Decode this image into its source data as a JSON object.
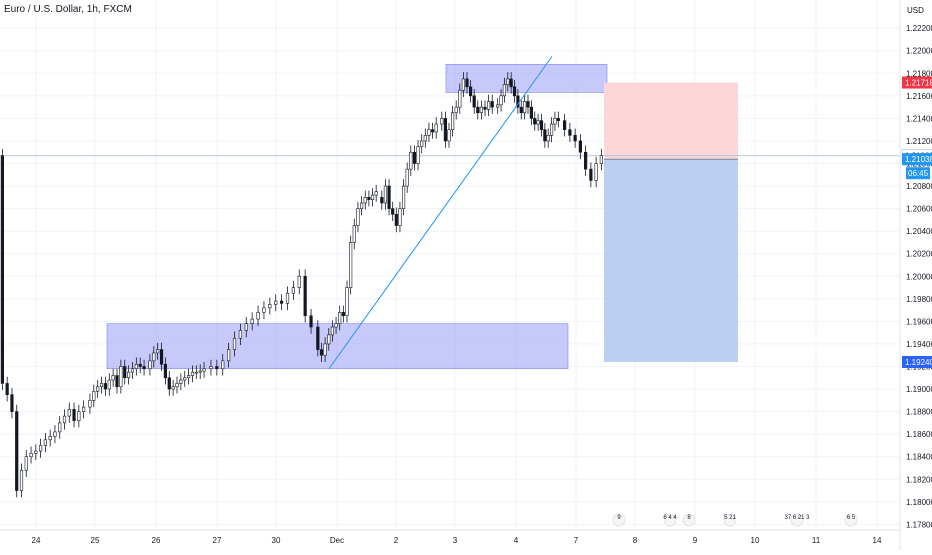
{
  "header": {
    "symbol_title": "Euro / U.S. Dollar, 1h, FXCM",
    "currency": "USD"
  },
  "chart_data": {
    "type": "candlestick",
    "title": "Euro / U.S. Dollar, 1h, FXCM",
    "ylim": [
      1.1775,
      1.2245
    ],
    "y_ticks": [
      "1.17800",
      "1.18000",
      "1.18200",
      "1.18400",
      "1.18600",
      "1.18800",
      "1.19000",
      "1.19200",
      "1.19400",
      "1.19600",
      "1.19800",
      "1.20000",
      "1.20200",
      "1.20400",
      "1.20600",
      "1.20800",
      "1.21000",
      "1.21200",
      "1.21400",
      "1.21600",
      "1.21800",
      "1.22000",
      "1.22200"
    ],
    "x_ticks": [
      "24",
      "25",
      "26",
      "27",
      "30",
      "Dec",
      "2",
      "3",
      "4",
      "7",
      "8",
      "9",
      "10",
      "11",
      "14"
    ],
    "price_series": [
      [
        "24",
        1.1905
      ],
      [
        "24",
        1.1895
      ],
      [
        "24",
        1.188
      ],
      [
        "24",
        1.181
      ],
      [
        "24",
        1.1828
      ],
      [
        "24",
        1.184
      ],
      [
        "24",
        1.1843
      ],
      [
        "24",
        1.1845
      ],
      [
        "24",
        1.185
      ],
      [
        "24",
        1.1855
      ],
      [
        "24",
        1.1858
      ],
      [
        "24",
        1.1862
      ],
      [
        "24",
        1.187
      ],
      [
        "24",
        1.1876
      ],
      [
        "24",
        1.1882
      ],
      [
        "24",
        1.1872
      ],
      [
        "24",
        1.188
      ],
      [
        "24",
        1.1884
      ],
      [
        "25",
        1.189
      ],
      [
        "25",
        1.1898
      ],
      [
        "25",
        1.1902
      ],
      [
        "25",
        1.1905
      ],
      [
        "25",
        1.19
      ],
      [
        "25",
        1.1908
      ],
      [
        "25",
        1.1912
      ],
      [
        "25",
        1.1902
      ],
      [
        "25",
        1.192
      ],
      [
        "25",
        1.191
      ],
      [
        "25",
        1.1915
      ],
      [
        "25",
        1.1918
      ],
      [
        "25",
        1.1922
      ],
      [
        "25",
        1.192
      ],
      [
        "25",
        1.1918
      ],
      [
        "26",
        1.1925
      ],
      [
        "26",
        1.1932
      ],
      [
        "26",
        1.1935
      ],
      [
        "26",
        1.1922
      ],
      [
        "26",
        1.191
      ],
      [
        "26",
        1.19
      ],
      [
        "26",
        1.1902
      ],
      [
        "26",
        1.1905
      ],
      [
        "26",
        1.1908
      ],
      [
        "26",
        1.191
      ],
      [
        "26",
        1.1912
      ],
      [
        "26",
        1.1915
      ],
      [
        "26",
        1.1915
      ],
      [
        "26",
        1.1916
      ],
      [
        "26",
        1.1918
      ],
      [
        "27",
        1.192
      ],
      [
        "27",
        1.1918
      ],
      [
        "27",
        1.1925
      ],
      [
        "27",
        1.1935
      ],
      [
        "27",
        1.1945
      ],
      [
        "27",
        1.1952
      ],
      [
        "27",
        1.1958
      ],
      [
        "27",
        1.1962
      ],
      [
        "27",
        1.1968
      ],
      [
        "27",
        1.1972
      ],
      [
        "27",
        1.1975
      ],
      [
        "27",
        1.1978
      ],
      [
        "27",
        1.1976
      ],
      [
        "27",
        1.1985
      ],
      [
        "27",
        1.199
      ],
      [
        "27",
        1.2
      ],
      [
        "27",
        1.1965
      ],
      [
        "27",
        1.1955
      ],
      [
        "Dec",
        1.1935
      ],
      [
        "Dec",
        1.193
      ],
      [
        "Dec",
        1.194
      ],
      [
        "Dec",
        1.1948
      ],
      [
        "Dec",
        1.1955
      ],
      [
        "Dec",
        1.1958
      ],
      [
        "Dec",
        1.1968
      ],
      [
        "Dec",
        1.1965
      ],
      [
        "Dec",
        1.199
      ],
      [
        "Dec",
        1.203
      ],
      [
        "Dec",
        1.2045
      ],
      [
        "Dec",
        1.206
      ],
      [
        "Dec",
        1.2065
      ],
      [
        "Dec",
        1.207
      ],
      [
        "Dec",
        1.2068
      ],
      [
        "Dec",
        1.2072
      ],
      [
        "Dec",
        1.2075
      ],
      [
        "2",
        1.2065
      ],
      [
        "2",
        1.208
      ],
      [
        "2",
        1.206
      ],
      [
        "2",
        1.2055
      ],
      [
        "2",
        1.2045
      ],
      [
        "2",
        1.206
      ],
      [
        "2",
        1.208
      ],
      [
        "2",
        1.2095
      ],
      [
        "2",
        1.211
      ],
      [
        "2",
        1.21
      ],
      [
        "2",
        1.2115
      ],
      [
        "2",
        1.212
      ],
      [
        "2",
        1.2125
      ],
      [
        "2",
        1.213
      ],
      [
        "2",
        1.2128
      ],
      [
        "2",
        1.2135
      ],
      [
        "3",
        1.214
      ],
      [
        "3",
        1.212
      ],
      [
        "3",
        1.213
      ],
      [
        "3",
        1.2145
      ],
      [
        "3",
        1.215
      ],
      [
        "3",
        1.2165
      ],
      [
        "3",
        1.2175
      ],
      [
        "3",
        1.2168
      ],
      [
        "3",
        1.216
      ],
      [
        "3",
        1.215
      ],
      [
        "3",
        1.2145
      ],
      [
        "3",
        1.215
      ],
      [
        "3",
        1.2148
      ],
      [
        "3",
        1.2155
      ],
      [
        "3",
        1.215
      ],
      [
        "4",
        1.2152
      ],
      [
        "4",
        1.216
      ],
      [
        "4",
        1.217
      ],
      [
        "4",
        1.2175
      ],
      [
        "4",
        1.2168
      ],
      [
        "4",
        1.216
      ],
      [
        "4",
        1.215
      ],
      [
        "4",
        1.2145
      ],
      [
        "4",
        1.2155
      ],
      [
        "4",
        1.215
      ],
      [
        "4",
        1.214
      ],
      [
        "4",
        1.2135
      ],
      [
        "4",
        1.2138
      ],
      [
        "4",
        1.213
      ],
      [
        "4",
        1.212
      ],
      [
        "4",
        1.2125
      ],
      [
        "4",
        1.2135
      ],
      [
        "4",
        1.214
      ],
      [
        "4",
        1.2138
      ],
      [
        "7",
        1.213
      ],
      [
        "7",
        1.2125
      ],
      [
        "7",
        1.212
      ],
      [
        "7",
        1.211
      ],
      [
        "7",
        1.2095
      ],
      [
        "7",
        1.2085
      ],
      [
        "7",
        1.21
      ],
      [
        "7",
        1.2107
      ]
    ],
    "zones": [
      {
        "name": "supply-zone",
        "from_x": "3",
        "to_x": "7",
        "y_low": 1.2163,
        "y_high": 1.2188
      },
      {
        "name": "demand-zone",
        "from_x": "25",
        "to_x": "7",
        "y_low": 1.1918,
        "y_high": 1.1958
      }
    ],
    "trendline": {
      "from": [
        "Dec",
        1.1918
      ],
      "to": [
        "4",
        1.2195
      ]
    },
    "position": {
      "side": "short",
      "entry": 1.21038,
      "stop": 1.21718,
      "target": 1.1924,
      "stop_color": "#fbd7d9",
      "target_color": "#bad0f0"
    },
    "price_labels": {
      "stop": "1.21718",
      "current": "1.21069",
      "entry": "1.21038",
      "countdown": "06:45",
      "target": "1.19240"
    },
    "event_markers": [
      {
        "x": "7",
        "text": "9"
      },
      {
        "x": "8",
        "text": "6 4 4"
      },
      {
        "x": "9",
        "text": "8"
      },
      {
        "x": "10",
        "text": "5 21"
      },
      {
        "x": "11",
        "text": "37 6 21 3"
      },
      {
        "x": "14",
        "text": "6 5"
      }
    ],
    "colors": {
      "bull": "#131722",
      "bear": "#131722",
      "zone": "#9a9cf8",
      "trendline": "#2196f3",
      "stop_label": "#f23645",
      "entry_label": "#2962ff",
      "grid": "#f0f3fa"
    }
  }
}
